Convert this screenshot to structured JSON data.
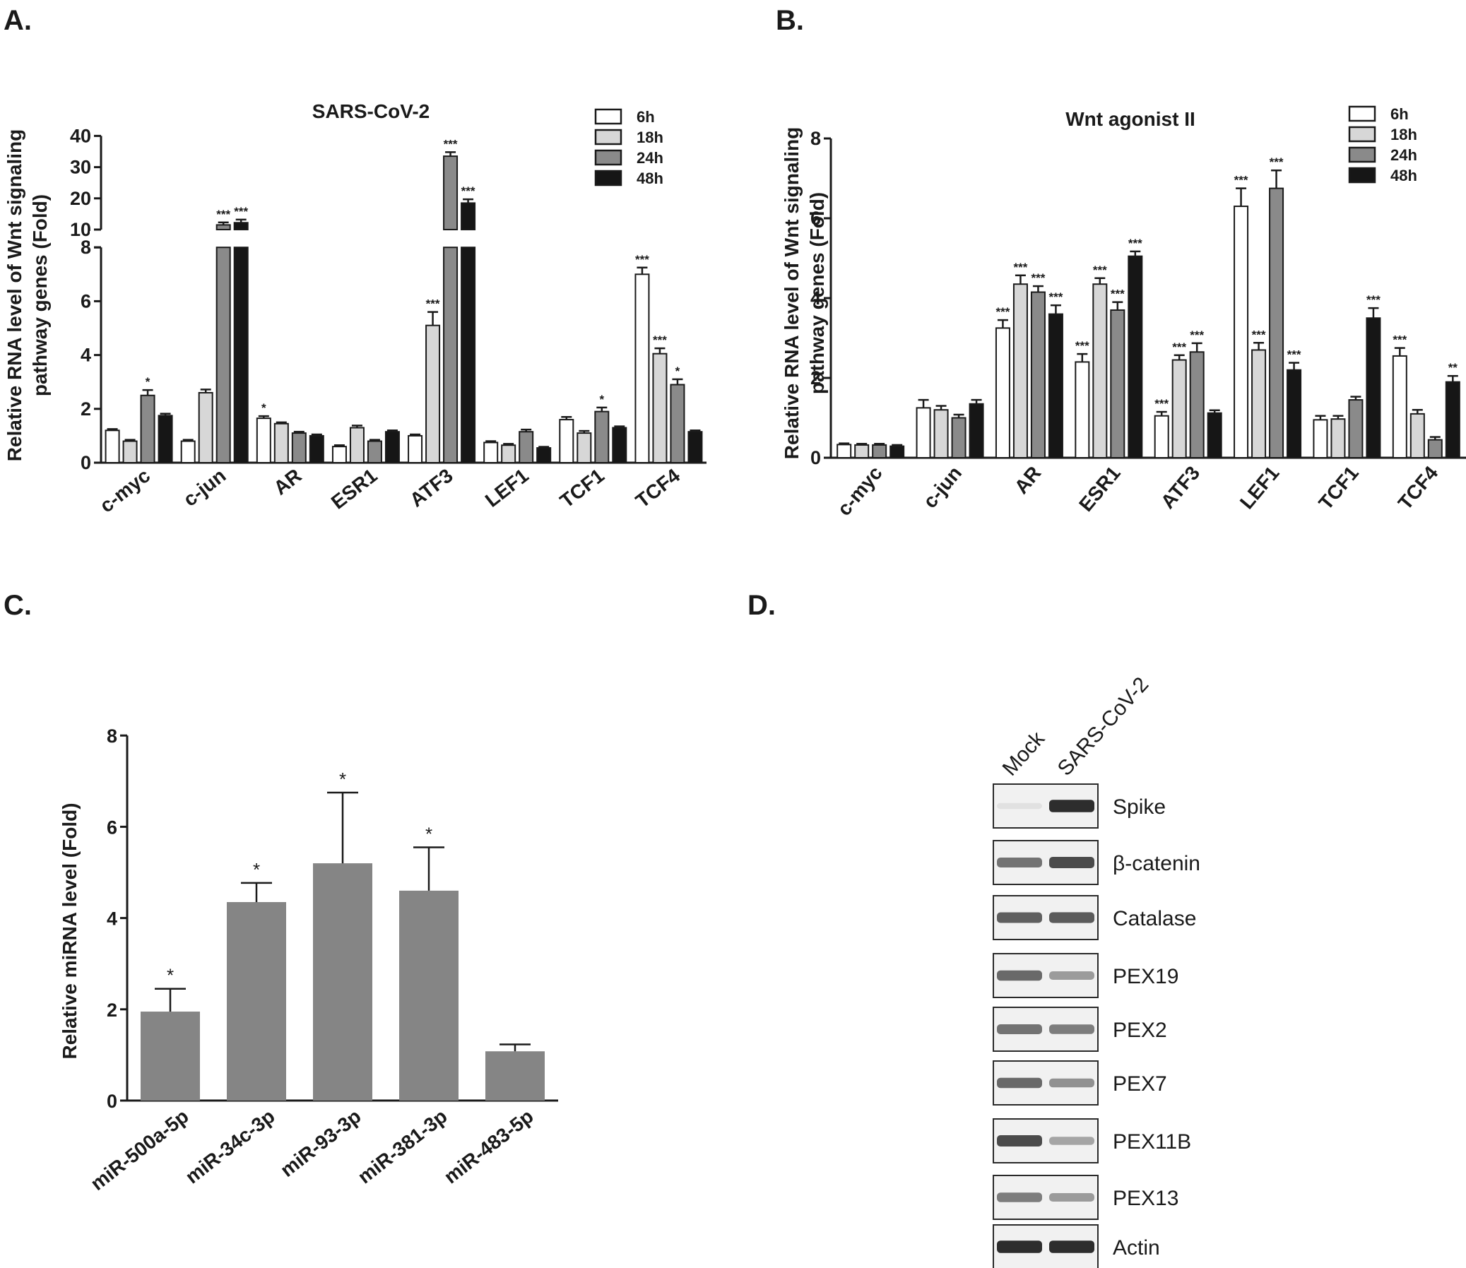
{
  "panels": {
    "a": "A.",
    "b": "B.",
    "c": "C.",
    "d": "D."
  },
  "series_colors": {
    "6h": "#ffffff",
    "18h": "#d7d7d7",
    "24h": "#8a8a8a",
    "48h": "#161616"
  },
  "chart_data": [
    {
      "id": "A",
      "type": "bar",
      "title": "SARS-CoV-2",
      "ylabel": [
        "Relative RNA level of Wnt signaling",
        "pathway genes (Fold)"
      ],
      "xlabel": "",
      "categories": [
        "c-myc",
        "c-jun",
        "AR",
        "ESR1",
        "ATF3",
        "LEF1",
        "TCF1",
        "TCF4"
      ],
      "ylim": [
        0,
        40
      ],
      "y_break": {
        "lower_range": [
          0,
          8
        ],
        "upper_range": [
          10,
          40
        ]
      },
      "yticks": [
        "0",
        "2",
        "4",
        "6",
        "8",
        "10",
        "20",
        "30",
        "40"
      ],
      "legend": [
        "6h",
        "18h",
        "24h",
        "48h"
      ],
      "series": [
        {
          "name": "6h",
          "values": [
            1.2,
            0.8,
            1.65,
            0.6,
            1.0,
            0.75,
            1.6,
            7.0
          ],
          "errors": [
            0.05,
            0.05,
            0.08,
            0.05,
            0.05,
            0.05,
            0.1,
            0.25
          ],
          "sig": [
            "",
            "",
            "*",
            "",
            "",
            "",
            "",
            "***"
          ]
        },
        {
          "name": "18h",
          "values": [
            0.8,
            2.6,
            1.45,
            1.3,
            5.1,
            0.65,
            1.1,
            4.05
          ],
          "errors": [
            0.05,
            0.12,
            0.05,
            0.08,
            0.5,
            0.05,
            0.08,
            0.2
          ],
          "sig": [
            "",
            "",
            "",
            "",
            "***",
            "",
            "",
            "***"
          ]
        },
        {
          "name": "24h",
          "values": [
            2.5,
            11.5,
            1.1,
            0.8,
            33.5,
            1.15,
            1.9,
            2.9
          ],
          "errors": [
            0.2,
            0.8,
            0.05,
            0.05,
            1.3,
            0.08,
            0.15,
            0.2
          ],
          "sig": [
            "*",
            "***",
            "",
            "",
            "***",
            "",
            "*",
            "*"
          ]
        },
        {
          "name": "48h",
          "values": [
            1.75,
            12.2,
            1.0,
            1.15,
            18.5,
            0.55,
            1.3,
            1.15
          ],
          "errors": [
            0.07,
            1.0,
            0.05,
            0.05,
            1.2,
            0.04,
            0.05,
            0.05
          ],
          "sig": [
            "",
            "***",
            "",
            "",
            "***",
            "",
            "",
            ""
          ]
        }
      ]
    },
    {
      "id": "B",
      "type": "bar",
      "title": "Wnt agonist II",
      "ylabel": [
        "Relative RNA level of Wnt signaling",
        "pathway genes (Fold)"
      ],
      "xlabel": "",
      "categories": [
        "c-myc",
        "c-jun",
        "AR",
        "ESR1",
        "ATF3",
        "LEF1",
        "TCF1",
        "TCF4"
      ],
      "ylim": [
        0,
        8
      ],
      "yticks": [
        "0",
        "2",
        "4",
        "6",
        "8"
      ],
      "legend": [
        "6h",
        "18h",
        "24h",
        "48h"
      ],
      "series": [
        {
          "name": "6h",
          "values": [
            0.33,
            1.25,
            3.25,
            2.4,
            1.05,
            6.3,
            0.95,
            2.55
          ],
          "errors": [
            0.03,
            0.2,
            0.2,
            0.2,
            0.1,
            0.45,
            0.1,
            0.2
          ],
          "sig": [
            "",
            "",
            "***",
            "***",
            "***",
            "***",
            "",
            "***"
          ]
        },
        {
          "name": "18h",
          "values": [
            0.32,
            1.2,
            4.35,
            4.35,
            2.45,
            2.7,
            0.97,
            1.1
          ],
          "errors": [
            0.03,
            0.1,
            0.22,
            0.15,
            0.12,
            0.18,
            0.08,
            0.1
          ],
          "sig": [
            "",
            "",
            "***",
            "***",
            "***",
            "***",
            "",
            ""
          ]
        },
        {
          "name": "24h",
          "values": [
            0.32,
            1.0,
            4.15,
            3.7,
            2.65,
            6.75,
            1.45,
            0.45
          ],
          "errors": [
            0.03,
            0.08,
            0.15,
            0.2,
            0.22,
            0.45,
            0.08,
            0.07
          ],
          "sig": [
            "",
            "",
            "***",
            "***",
            "***",
            "***",
            "",
            ""
          ]
        },
        {
          "name": "48h",
          "values": [
            0.29,
            1.35,
            3.6,
            5.05,
            1.12,
            2.2,
            3.5,
            1.9
          ],
          "errors": [
            0.03,
            0.1,
            0.22,
            0.12,
            0.07,
            0.18,
            0.25,
            0.15
          ],
          "sig": [
            "",
            "",
            "***",
            "***",
            "",
            "***",
            "***",
            "**"
          ]
        }
      ]
    },
    {
      "id": "C",
      "type": "bar",
      "ylabel": "Relative miRNA level (Fold)",
      "xlabel": "",
      "categories": [
        "miR-500a-5p",
        "miR-34c-3p",
        "miR-93-3p",
        "miR-381-3p",
        "miR-483-5p"
      ],
      "values": [
        1.95,
        4.35,
        5.2,
        4.6,
        1.08
      ],
      "errors": [
        0.5,
        0.42,
        1.55,
        0.95,
        0.15
      ],
      "sig": [
        "*",
        "*",
        "*",
        "*",
        ""
      ],
      "ylim": [
        0,
        8
      ],
      "yticks": [
        "0",
        "2",
        "4",
        "6",
        "8"
      ],
      "bar_color": "#858585"
    }
  ],
  "western_blot": {
    "lanes": [
      "Mock",
      "SARS-CoV-2"
    ],
    "bands": [
      {
        "label": "Spike",
        "mock": 0.05,
        "cov": 0.95
      },
      {
        "label": "β-catenin",
        "mock": 0.6,
        "cov": 0.8
      },
      {
        "label": "Catalase",
        "mock": 0.7,
        "cov": 0.72
      },
      {
        "label": "PEX19",
        "mock": 0.65,
        "cov": 0.4
      },
      {
        "label": "PEX2",
        "mock": 0.6,
        "cov": 0.55
      },
      {
        "label": "PEX7",
        "mock": 0.65,
        "cov": 0.45
      },
      {
        "label": "PEX11B",
        "mock": 0.8,
        "cov": 0.35
      },
      {
        "label": "PEX13",
        "mock": 0.55,
        "cov": 0.4
      },
      {
        "label": "Actin",
        "mock": 0.95,
        "cov": 0.95
      }
    ]
  }
}
